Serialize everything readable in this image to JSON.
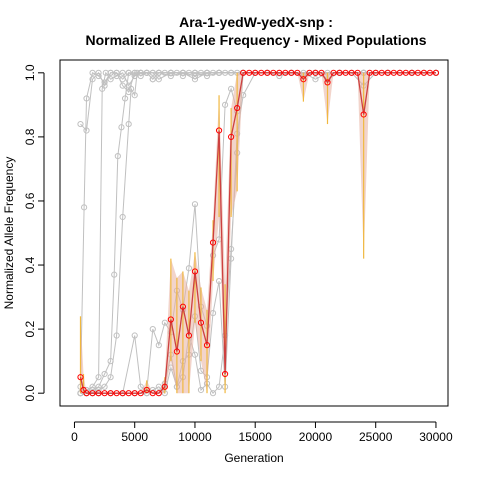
{
  "chart_data": {
    "type": "line",
    "title_line1": "Ara-1-yedW-yedX-snp :",
    "title_line2": "Normalized B Allele Frequency - Mixed Populations",
    "xlabel": "Generation",
    "ylabel": "Normalized Allele Frequency",
    "xlim": [
      -1200,
      31000
    ],
    "ylim": [
      -0.04,
      1.04
    ],
    "x_ticks": [
      {
        "value": 0,
        "label": "0"
      },
      {
        "value": 5000,
        "label": "5000"
      },
      {
        "value": 10000,
        "label": "10000"
      },
      {
        "value": 15000,
        "label": "15000"
      },
      {
        "value": 20000,
        "label": "20000"
      },
      {
        "value": 25000,
        "label": "25000"
      },
      {
        "value": 30000,
        "label": "30000"
      }
    ],
    "y_ticks": [
      {
        "value": 0.0,
        "label": "0.0"
      },
      {
        "value": 0.2,
        "label": "0.2"
      },
      {
        "value": 0.4,
        "label": "0.4"
      },
      {
        "value": 0.6,
        "label": "0.6"
      },
      {
        "value": 0.8,
        "label": "0.8"
      },
      {
        "value": 1.0,
        "label": "1.0"
      }
    ],
    "colors": {
      "background_series": "#c0c0c0",
      "highlight_line": "#cd4040",
      "highlight_marker": "#ff0000",
      "error_bar": "#f0b840",
      "band": "#e8b0a0"
    },
    "series": [
      {
        "x": [
          500,
          750,
          1000,
          1500,
          2000,
          2500,
          3000,
          3500,
          4000,
          4500,
          5000,
          5500,
          6000,
          6500,
          7000,
          7500,
          8000,
          8500,
          9000,
          9500,
          10000,
          10500,
          11000,
          11500,
          12000,
          12500,
          13000,
          13500,
          14000,
          14500,
          15000,
          15500,
          16000,
          16500,
          17000,
          17500,
          18000,
          18500,
          19000,
          19500,
          20000,
          20500,
          21000,
          21500,
          22000,
          22500,
          23000,
          23500,
          24000,
          24500,
          25000,
          25500,
          26000,
          26500,
          27000,
          27500,
          28000,
          28500,
          29000,
          29500,
          30000
        ],
        "y": [
          0.05,
          0.01,
          0,
          0,
          0,
          0,
          0,
          0,
          0,
          0,
          0,
          0,
          0.01,
          0,
          0,
          0.02,
          0.23,
          0.13,
          0.27,
          0.18,
          0.38,
          0.22,
          0.15,
          0.47,
          0.82,
          0.06,
          0.8,
          0.89,
          1.0,
          1.0,
          1.0,
          1.0,
          1.0,
          1.0,
          1.0,
          1.0,
          1.0,
          1.0,
          0.98,
          1.0,
          1.0,
          1.0,
          0.97,
          1.0,
          1.0,
          1.0,
          1.0,
          1.0,
          0.87,
          1.0,
          1.0,
          1.0,
          1.0,
          1.0,
          1.0,
          1.0,
          1.0,
          1.0,
          1.0,
          1.0,
          1.0
        ],
        "err_low": [
          0.0,
          0.0,
          0,
          0,
          0,
          0,
          0,
          0,
          0,
          0,
          0,
          0,
          0.0,
          0,
          0,
          0.0,
          0.1,
          0.0,
          0.0,
          0.0,
          0.22,
          0.1,
          0.0,
          0.35,
          0.55,
          0.0,
          0.55,
          0.63,
          1.0,
          1.0,
          1.0,
          1.0,
          1.0,
          1.0,
          1.0,
          1.0,
          1.0,
          1.0,
          0.91,
          1.0,
          1.0,
          1.0,
          0.84,
          1.0,
          1.0,
          1.0,
          1.0,
          1.0,
          0.42,
          1.0,
          1.0,
          1.0,
          1.0,
          1.0,
          1.0,
          1.0,
          1.0,
          1.0,
          1.0,
          1.0,
          1.0
        ],
        "err_high": [
          0.24,
          0.06,
          0,
          0,
          0,
          0,
          0,
          0,
          0,
          0,
          0,
          0,
          0.04,
          0,
          0,
          0.05,
          0.42,
          0.36,
          0.38,
          0.32,
          0.44,
          0.33,
          0.26,
          0.54,
          0.93,
          0.34,
          0.89,
          1.0,
          1.0,
          1.0,
          1.0,
          1.0,
          1.0,
          1.0,
          1.0,
          1.0,
          1.0,
          1.0,
          1.0,
          1.0,
          1.0,
          1.0,
          1.0,
          1.0,
          1.0,
          1.0,
          1.0,
          1.0,
          1.0,
          1.0,
          1.0,
          1.0,
          1.0,
          1.0,
          1.0,
          1.0,
          1.0,
          1.0,
          1.0,
          1.0,
          1.0
        ]
      },
      {
        "x": [
          500,
          1000,
          1500,
          2000,
          2500,
          3000,
          3500,
          4000,
          4500,
          5000,
          5500,
          6000,
          6500,
          7000,
          7500,
          8000,
          8500,
          9000,
          9500,
          10000,
          10500,
          11000,
          11500,
          12000,
          12500,
          13000,
          13500,
          14000,
          16000,
          18000,
          20000,
          22000,
          24000,
          26000,
          28000,
          30000
        ],
        "y": [
          0.84,
          0.82,
          0.98,
          1.0,
          0.96,
          1.0,
          1.0,
          0.98,
          1.0,
          1.0,
          1.0,
          1.0,
          1.0,
          1.0,
          1.0,
          1.0,
          1.0,
          0.99,
          1.0,
          1.0,
          1.0,
          1.0,
          1.0,
          1.0,
          1.0,
          1.0,
          1.0,
          1.0,
          1.0,
          1.0,
          1.0,
          1.0,
          1.0,
          1.0,
          1.0,
          1.0
        ]
      },
      {
        "x": [
          500,
          800,
          1000,
          1500,
          2000,
          2500,
          3000,
          3500,
          4000,
          4500,
          5000,
          5500,
          6000,
          7000,
          8000,
          9000,
          10000,
          11000,
          12000,
          13000,
          14000,
          16000,
          18000,
          20000,
          22000,
          24000,
          26000,
          28000,
          30000
        ],
        "y": [
          0.02,
          0.58,
          0.92,
          1.0,
          0.99,
          0.97,
          1.0,
          1.0,
          0.96,
          0.94,
          1.0,
          1.0,
          1.0,
          1.0,
          0.99,
          1.0,
          1.0,
          1.0,
          1.0,
          1.0,
          1.0,
          1.0,
          1.0,
          1.0,
          1.0,
          1.0,
          1.0,
          1.0,
          1.0
        ]
      },
      {
        "x": [
          500,
          1000,
          1500,
          2000,
          2300,
          2600,
          3000,
          3500,
          4000,
          4500,
          5000,
          5500,
          6000,
          6500,
          7000,
          8000,
          9000,
          10000,
          11000,
          12000,
          14000,
          16000,
          18000,
          20000,
          22000,
          24000,
          26000,
          28000,
          30000
        ],
        "y": [
          0.0,
          0.01,
          0.02,
          0.05,
          0.95,
          1.0,
          0.98,
          0.99,
          1.0,
          0.96,
          0.99,
          1.0,
          1.0,
          0.98,
          1.0,
          1.0,
          1.0,
          0.98,
          1.0,
          1.0,
          1.0,
          1.0,
          1.0,
          1.0,
          1.0,
          1.0,
          1.0,
          1.0,
          1.0
        ]
      },
      {
        "x": [
          500,
          1000,
          1500,
          2000,
          2500,
          3000,
          3300,
          3600,
          3900,
          4200,
          4500,
          5000,
          5500,
          6000,
          6500,
          7000,
          8000,
          9000,
          10000,
          11000,
          12000,
          14000,
          16000,
          18000,
          20000,
          22000,
          24000,
          26000,
          28000,
          30000
        ],
        "y": [
          0.0,
          0.0,
          0.01,
          0.02,
          0.06,
          0.1,
          0.37,
          0.74,
          0.83,
          0.92,
          1.0,
          0.99,
          1.0,
          1.0,
          0.98,
          1.0,
          1.0,
          1.0,
          0.99,
          1.0,
          1.0,
          1.0,
          1.0,
          1.0,
          1.0,
          1.0,
          1.0,
          1.0,
          1.0,
          1.0
        ]
      },
      {
        "x": [
          500,
          1000,
          1500,
          2000,
          2500,
          3000,
          3500,
          4000,
          4500,
          4700,
          5000,
          5200,
          5500,
          6000,
          6500,
          7000,
          8000,
          9000,
          10000,
          11000,
          12000,
          14000,
          16000,
          18000,
          20000,
          22000,
          24000,
          26000,
          28000,
          30000
        ],
        "y": [
          0.0,
          0.0,
          0.0,
          0.01,
          0.02,
          0.05,
          0.18,
          0.55,
          0.84,
          0.95,
          0.93,
          1.0,
          0.99,
          1.0,
          1.0,
          0.98,
          1.0,
          1.0,
          1.0,
          0.99,
          1.0,
          1.0,
          1.0,
          1.0,
          1.0,
          1.0,
          1.0,
          1.0,
          1.0,
          1.0
        ]
      },
      {
        "x": [
          500,
          1000,
          1500,
          2000,
          3000,
          4000,
          5000,
          5500,
          6000,
          6500,
          7000,
          7500,
          8000,
          8500,
          9000,
          9500,
          10000,
          10500,
          11000,
          11500,
          12000,
          12500,
          13000,
          13500,
          14000,
          15000,
          16000,
          17000,
          18000,
          19000,
          20000,
          21000,
          22000,
          23000,
          24000,
          25000,
          26000,
          27000,
          28000,
          29000,
          30000
        ],
        "y": [
          0.0,
          0.0,
          0.0,
          0.0,
          0.0,
          0.0,
          0.18,
          0.02,
          0.01,
          0.2,
          0.15,
          0.22,
          0.19,
          0.32,
          0.26,
          0.39,
          0.59,
          0.27,
          0.21,
          0.43,
          0.48,
          0.9,
          0.95,
          0.88,
          1.0,
          1.0,
          1.0,
          0.99,
          1.0,
          1.0,
          0.98,
          1.0,
          1.0,
          1.0,
          1.0,
          1.0,
          1.0,
          1.0,
          1.0,
          1.0,
          1.0
        ]
      },
      {
        "x": [
          500,
          1000,
          1500,
          2000,
          3000,
          4000,
          5000,
          6000,
          6500,
          7000,
          7500,
          8000,
          8500,
          9000,
          9500,
          10000,
          10500,
          11000,
          11500,
          12000,
          12500,
          13000,
          13500,
          14000,
          15000,
          16000,
          17000,
          18000,
          19000,
          20000,
          21000,
          22000,
          23000,
          24000,
          25000,
          26000,
          27000,
          28000,
          29000,
          30000
        ],
        "y": [
          0.0,
          0.0,
          0.0,
          0.0,
          0.0,
          0.0,
          0.0,
          0.0,
          0.01,
          0.0,
          0.03,
          0.12,
          0.02,
          0.1,
          0.12,
          0.24,
          0.07,
          0.05,
          0.25,
          0.35,
          0.02,
          0.42,
          0.81,
          0.93,
          1.0,
          1.0,
          1.0,
          1.0,
          0.99,
          1.0,
          0.98,
          1.0,
          1.0,
          0.96,
          1.0,
          1.0,
          1.0,
          1.0,
          1.0,
          1.0
        ]
      },
      {
        "x": [
          500,
          1000,
          2000,
          3000,
          4000,
          5000,
          6000,
          7000,
          7500,
          8000,
          8500,
          9000,
          9500,
          10000,
          10500,
          11000,
          11500,
          12000,
          12500,
          13000,
          13500,
          14000,
          16000,
          18000,
          20000,
          22000,
          24000,
          26000,
          28000,
          30000
        ],
        "y": [
          0.0,
          0.0,
          0.0,
          0.0,
          0.0,
          0.0,
          0.0,
          0.02,
          0.0,
          0.08,
          0.02,
          0.05,
          0.18,
          0.12,
          0.01,
          0.03,
          0.0,
          0.02,
          0.18,
          0.45,
          0.75,
          1.0,
          1.0,
          1.0,
          1.0,
          1.0,
          1.0,
          1.0,
          1.0,
          1.0
        ]
      }
    ]
  }
}
